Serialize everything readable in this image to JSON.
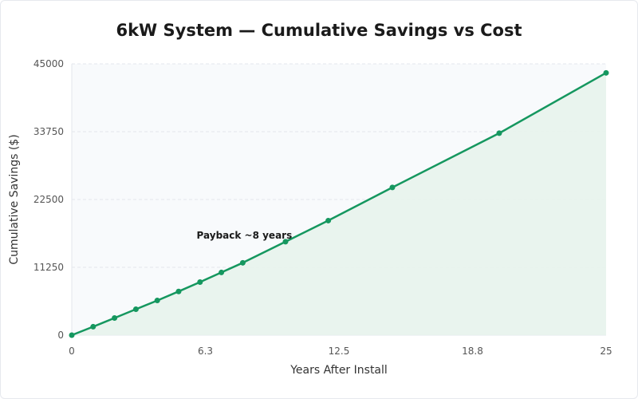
{
  "colors": {
    "line": "#15975f",
    "fill": "#e7f3ec",
    "plot_bg": "#f8fafc",
    "grid": "#e3e7ec"
  },
  "chart_data": {
    "type": "area",
    "title": "6kW System — Cumulative Savings vs Cost",
    "xlabel": "Years After Install",
    "ylabel": "Cumulative Savings ($)",
    "xlim": [
      0,
      25
    ],
    "ylim": [
      0,
      45000
    ],
    "x_ticks": [
      "0",
      "6.3",
      "12.5",
      "18.8",
      "25"
    ],
    "y_ticks": [
      "0",
      "11250",
      "22500",
      "33750",
      "45000"
    ],
    "grid": true,
    "x": [
      0,
      1,
      2,
      3,
      4,
      5,
      6,
      7,
      8,
      10,
      12,
      15,
      20,
      25
    ],
    "values": [
      0,
      1400,
      2850,
      4300,
      5750,
      7250,
      8800,
      10400,
      12000,
      15500,
      19000,
      24500,
      33500,
      43500
    ],
    "annotations": [
      {
        "text": "Payback ~8 years",
        "x": 8,
        "y": 15500
      }
    ]
  }
}
